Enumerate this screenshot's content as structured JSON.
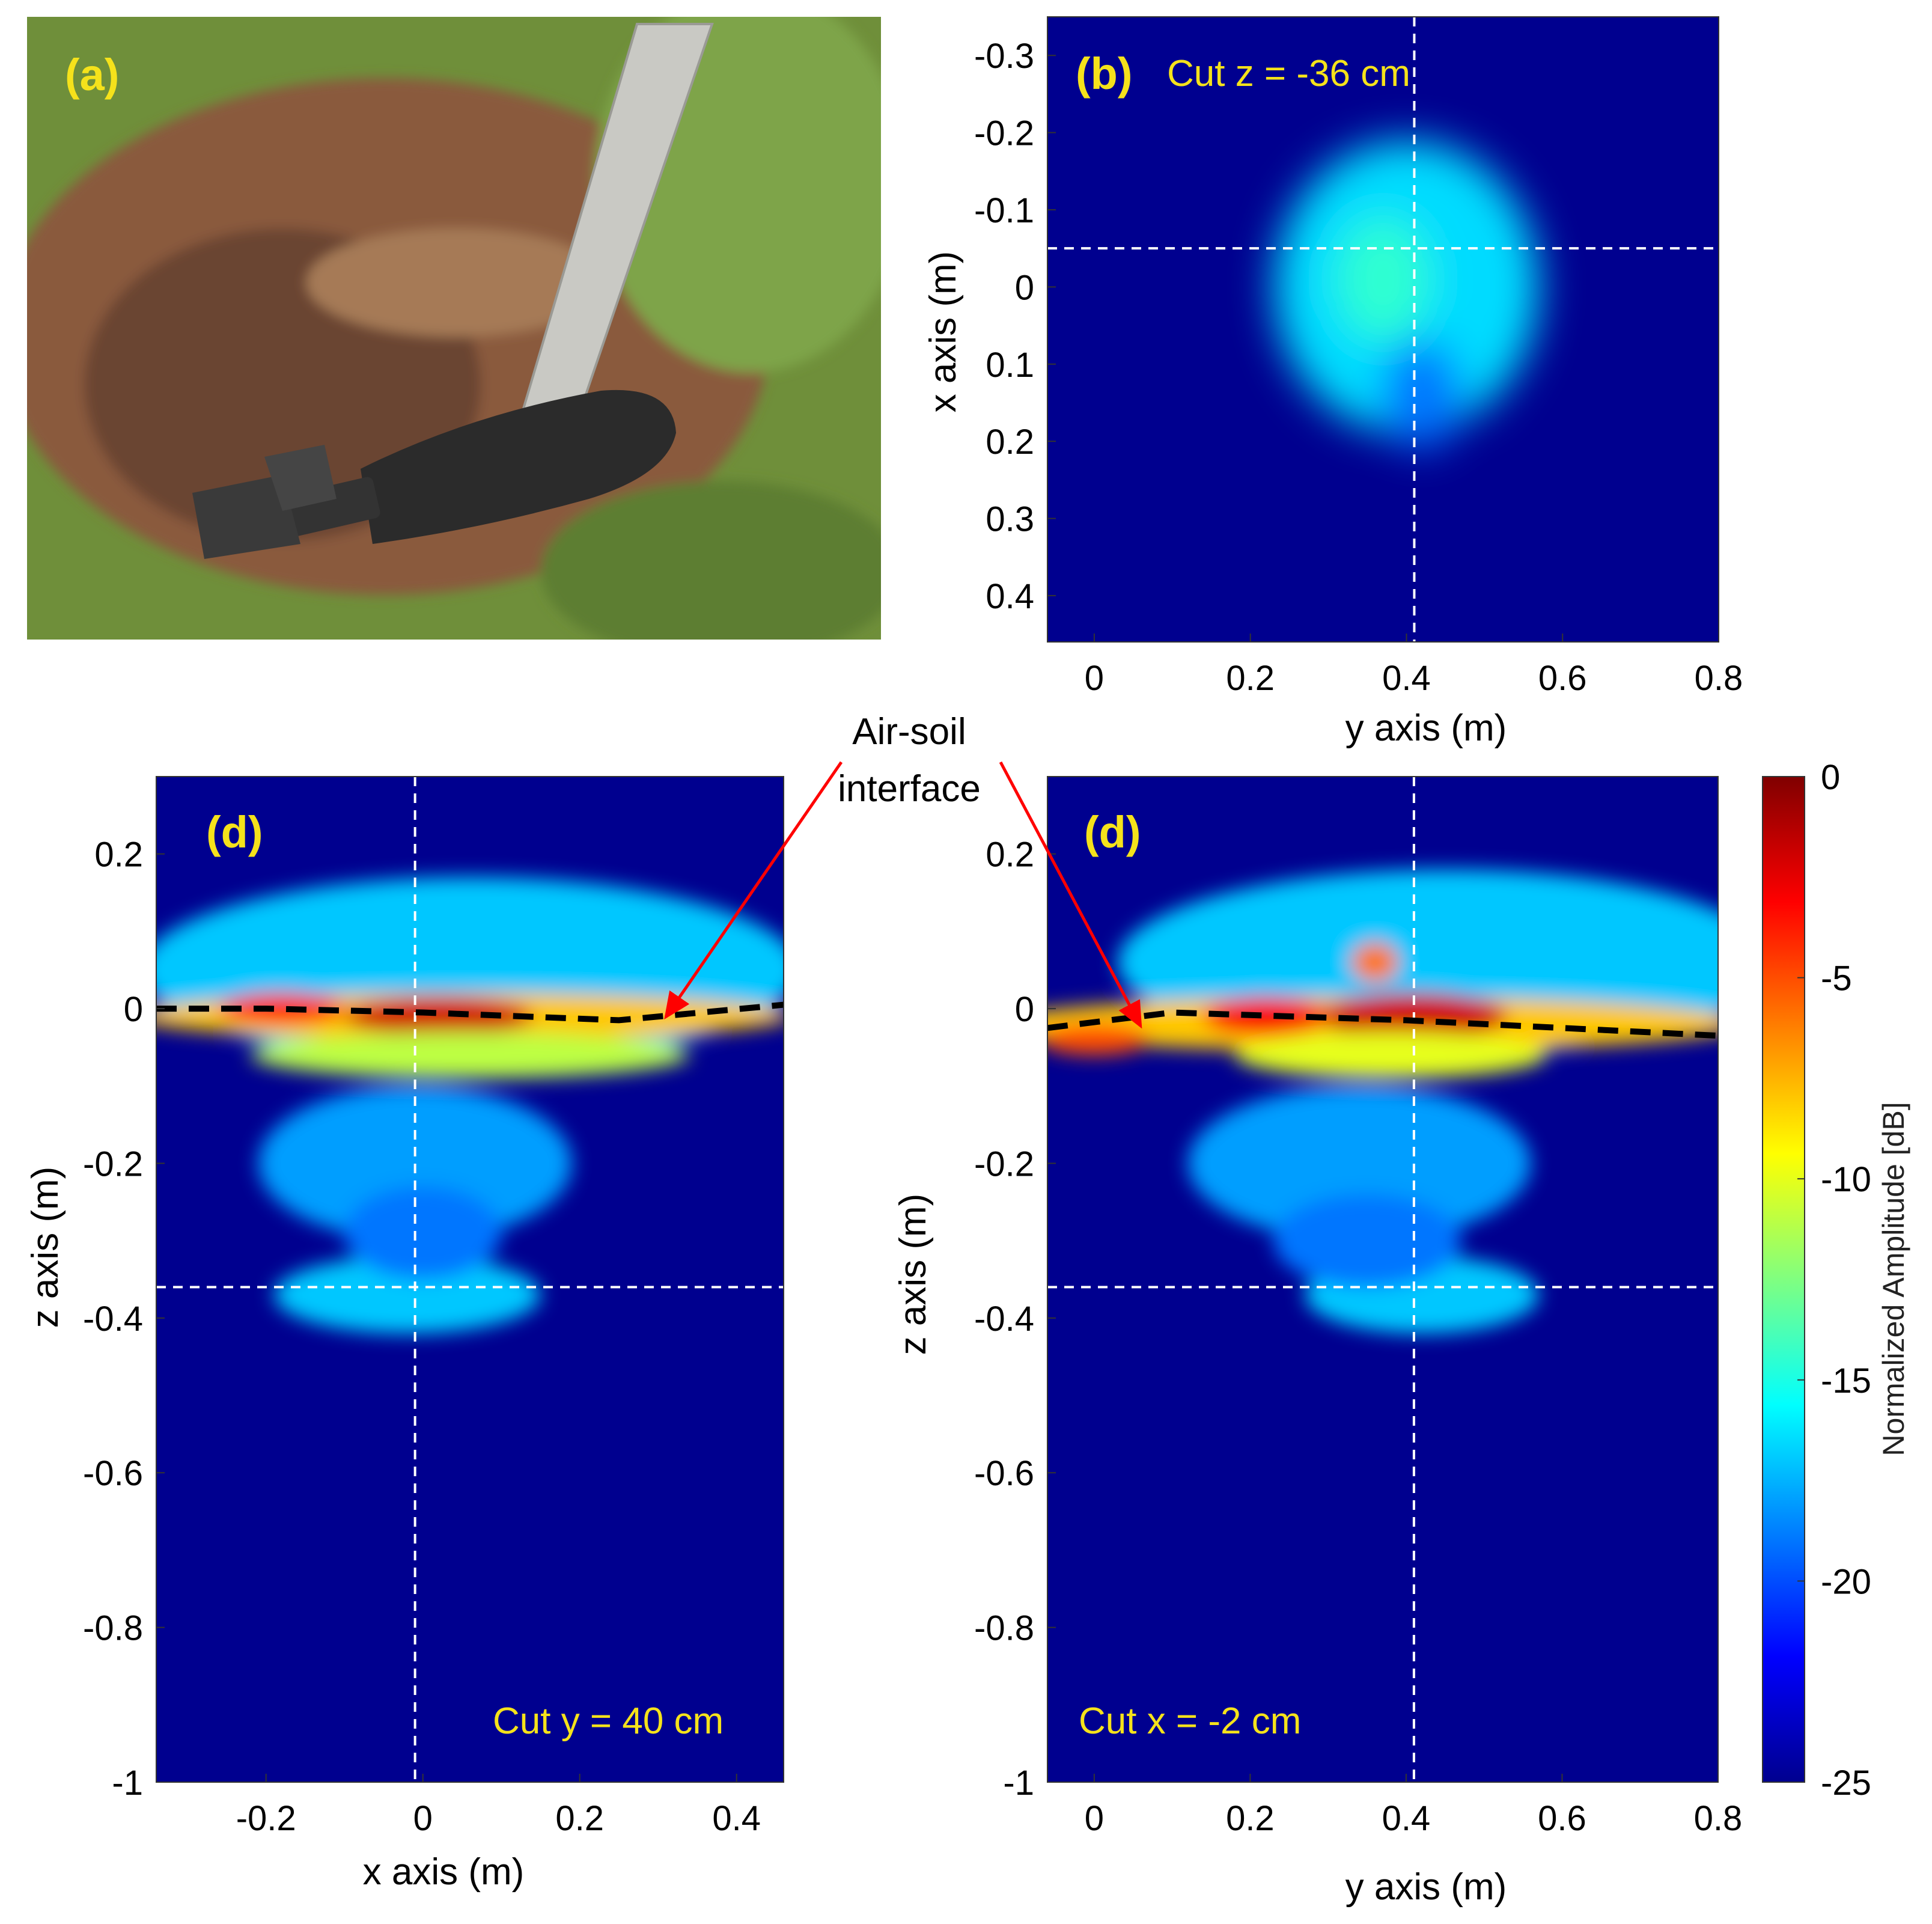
{
  "photo": {
    "label": "(a)",
    "colors": {
      "grass": "#6f8f3a",
      "soil": "#8a5a3c",
      "soil_dark": "#5b3a26",
      "shell": "#2b2b2b",
      "ruler": "#c9c9c4",
      "label": "#f5e21b"
    }
  },
  "colormap": {
    "name": "jet",
    "stops": [
      "#00008f",
      "#0000ff",
      "#0080ff",
      "#00ffff",
      "#80ff80",
      "#ffff00",
      "#ff8000",
      "#ff0000",
      "#800000"
    ]
  },
  "colorbar": {
    "label": "Normalized Amplitude [dB]",
    "range": [
      -25,
      0
    ],
    "ticks": [
      "0",
      "-5",
      "-10",
      "-15",
      "-20",
      "-25"
    ]
  },
  "annotation": {
    "lines": [
      "Air-soil",
      "interface"
    ],
    "arrow_color": "#ff0000"
  },
  "chart_data": [
    {
      "id": "b",
      "type": "heatmap",
      "panel_label": "(b)",
      "cut_label": "Cut z = -36 cm",
      "xlabel": "y axis (m)",
      "ylabel": "x axis (m)",
      "xlim": [
        -0.06,
        0.8
      ],
      "ylim": [
        0.46,
        -0.35
      ],
      "xticks": [
        "0",
        "0.2",
        "0.4",
        "0.6",
        "0.8"
      ],
      "yticks": [
        "-0.3",
        "-0.2",
        "-0.1",
        "0",
        "0.1",
        "0.2",
        "0.3",
        "0.4"
      ],
      "crosshair": {
        "x": 0.41,
        "y": -0.05
      },
      "background_db": -25,
      "blobs": [
        {
          "cx": 0.4,
          "cy": 0.0,
          "rx": 0.17,
          "ry": 0.19,
          "db": -16.5
        },
        {
          "cx": 0.37,
          "cy": -0.01,
          "rx": 0.06,
          "ry": 0.08,
          "db": -14.5
        },
        {
          "cx": 0.42,
          "cy": 0.14,
          "rx": 0.05,
          "ry": 0.07,
          "db": -19.0
        }
      ]
    },
    {
      "id": "d1",
      "type": "heatmap",
      "panel_label": "(d)",
      "cut_label": "Cut y = 40 cm",
      "xlabel": "x axis (m)",
      "ylabel": "z axis (m)",
      "xlim": [
        -0.34,
        0.46
      ],
      "ylim": [
        -1.0,
        0.3
      ],
      "xticks": [
        "-0.2",
        "0",
        "0.2",
        "0.4"
      ],
      "yticks": [
        "0.2",
        "0",
        "-0.2",
        "-0.4",
        "-0.6",
        "-0.8",
        "-1"
      ],
      "crosshair": {
        "x": -0.01,
        "y": -0.36
      },
      "interface": [
        [
          -0.34,
          0.0
        ],
        [
          -0.2,
          0.0
        ],
        [
          0.0,
          -0.005
        ],
        [
          0.25,
          -0.015
        ],
        [
          0.46,
          0.005
        ]
      ],
      "background_db": -25,
      "blobs": [
        {
          "cx": 0.06,
          "cy": 0.05,
          "rx": 0.42,
          "ry": 0.12,
          "db": -17
        },
        {
          "cx": 0.05,
          "cy": -0.01,
          "rx": 0.42,
          "ry": 0.03,
          "db": -8
        },
        {
          "cx": 0.02,
          "cy": -0.01,
          "rx": 0.12,
          "ry": 0.025,
          "db": -2
        },
        {
          "cx": -0.18,
          "cy": 0.0,
          "rx": 0.08,
          "ry": 0.02,
          "db": -4
        },
        {
          "cx": 0.06,
          "cy": -0.06,
          "rx": 0.28,
          "ry": 0.03,
          "db": -11
        },
        {
          "cx": -0.01,
          "cy": -0.2,
          "rx": 0.2,
          "ry": 0.1,
          "db": -18
        },
        {
          "cx": -0.02,
          "cy": -0.37,
          "rx": 0.17,
          "ry": 0.05,
          "db": -17
        },
        {
          "cx": 0.0,
          "cy": -0.29,
          "rx": 0.1,
          "ry": 0.06,
          "db": -19
        }
      ]
    },
    {
      "id": "d2",
      "type": "heatmap",
      "panel_label": "(d)",
      "cut_label": "Cut x = -2 cm",
      "xlabel": "y axis (m)",
      "ylabel": "z axis (m)",
      "xlim": [
        -0.06,
        0.8
      ],
      "ylim": [
        -1.0,
        0.3
      ],
      "xticks": [
        "0",
        "0.2",
        "0.4",
        "0.6",
        "0.8"
      ],
      "yticks": [
        "0.2",
        "0",
        "-0.2",
        "-0.4",
        "-0.6",
        "-0.8",
        "-1"
      ],
      "crosshair": {
        "x": 0.41,
        "y": -0.36
      },
      "interface": [
        [
          -0.06,
          -0.025
        ],
        [
          0.1,
          -0.005
        ],
        [
          0.4,
          -0.015
        ],
        [
          0.8,
          -0.035
        ]
      ],
      "background_db": -25,
      "blobs": [
        {
          "cx": 0.45,
          "cy": 0.06,
          "rx": 0.42,
          "ry": 0.12,
          "db": -17
        },
        {
          "cx": 0.35,
          "cy": -0.02,
          "rx": 0.48,
          "ry": 0.035,
          "db": -8
        },
        {
          "cx": 0.41,
          "cy": -0.01,
          "rx": 0.12,
          "ry": 0.03,
          "db": -2
        },
        {
          "cx": 0.22,
          "cy": -0.01,
          "rx": 0.08,
          "ry": 0.025,
          "db": -3
        },
        {
          "cx": 0.0,
          "cy": -0.04,
          "rx": 0.07,
          "ry": 0.02,
          "db": -5
        },
        {
          "cx": 0.36,
          "cy": 0.06,
          "rx": 0.03,
          "ry": 0.025,
          "db": -6
        },
        {
          "cx": 0.38,
          "cy": -0.06,
          "rx": 0.2,
          "ry": 0.03,
          "db": -10
        },
        {
          "cx": 0.34,
          "cy": -0.2,
          "rx": 0.22,
          "ry": 0.1,
          "db": -18
        },
        {
          "cx": 0.42,
          "cy": -0.37,
          "rx": 0.15,
          "ry": 0.05,
          "db": -17
        },
        {
          "cx": 0.35,
          "cy": -0.3,
          "rx": 0.12,
          "ry": 0.06,
          "db": -19
        }
      ]
    }
  ]
}
